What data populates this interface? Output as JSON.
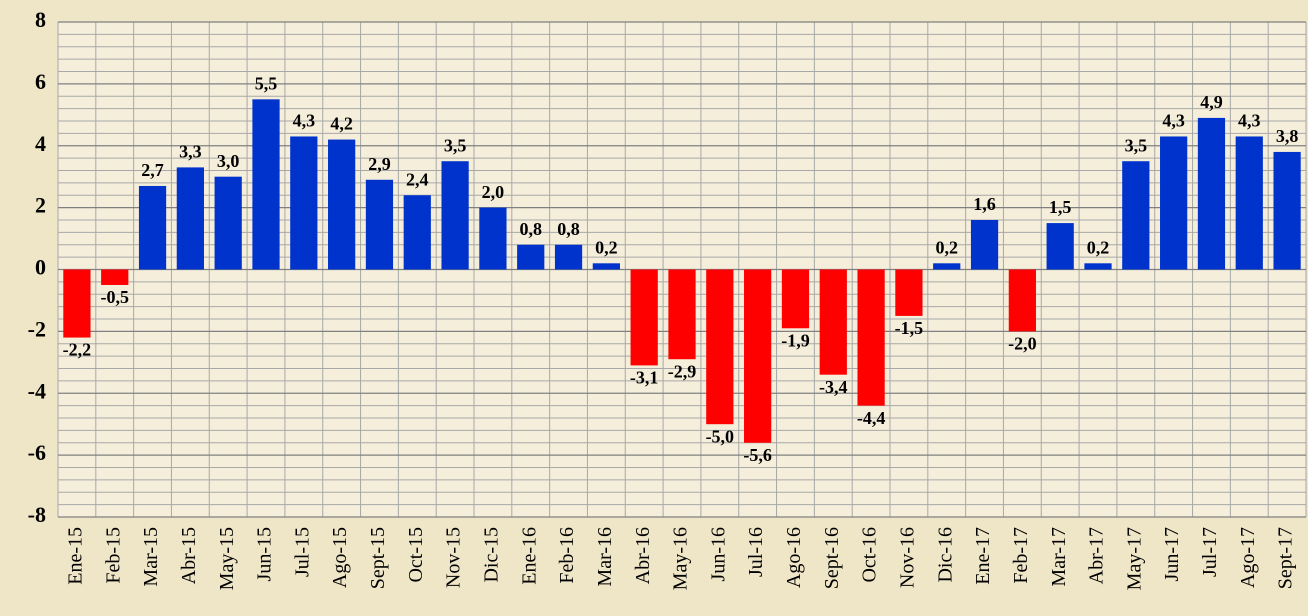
{
  "chart_data": {
    "type": "bar",
    "categories": [
      "Ene-15",
      "Feb-15",
      "Mar-15",
      "Abr-15",
      "May-15",
      "Jun-15",
      "Jul-15",
      "Ago-15",
      "Sept-15",
      "Oct-15",
      "Nov-15",
      "Dic-15",
      "Ene-16",
      "Feb-16",
      "Mar-16",
      "Abr-16",
      "May-16",
      "Jun-16",
      "Jul-16",
      "Ago-16",
      "Sept-16",
      "Oct-16",
      "Nov-16",
      "Dic-16",
      "Ene-17",
      "Feb-17",
      "Mar-17",
      "Abr-17",
      "May-17",
      "Jun-17",
      "Jul-17",
      "Ago-17",
      "Sept-17"
    ],
    "values": [
      -2.2,
      -0.5,
      2.7,
      3.3,
      3.0,
      5.5,
      4.3,
      4.2,
      2.9,
      2.4,
      3.5,
      2.0,
      0.8,
      0.8,
      0.2,
      -3.1,
      -2.9,
      -5.0,
      -5.6,
      -1.9,
      -3.4,
      -4.4,
      -1.5,
      0.2,
      1.6,
      -2.0,
      1.5,
      0.2,
      3.5,
      4.3,
      4.9,
      4.3,
      3.8
    ],
    "value_labels": [
      "-2,2",
      "-0,5",
      "2,7",
      "3,3",
      "3,0",
      "5,5",
      "4,3",
      "4,2",
      "2,9",
      "2,4",
      "3,5",
      "2,0",
      "0,8",
      "0,8",
      "0,2",
      "-3,1",
      "-2,9",
      "-5,0",
      "-5,6",
      "-1,9",
      "-3,4",
      "-4,4",
      "-1,5",
      "0,2",
      "1,6",
      "-2,0",
      "1,5",
      "0,2",
      "3,5",
      "4,3",
      "4,9",
      "4,3",
      "3,8"
    ],
    "positive_color": "#0033cc",
    "negative_color": "#ff0000",
    "ylim": [
      -8,
      8
    ],
    "yticks": [
      -8,
      -6,
      -4,
      -2,
      0,
      2,
      4,
      6,
      8
    ],
    "grid": true
  }
}
